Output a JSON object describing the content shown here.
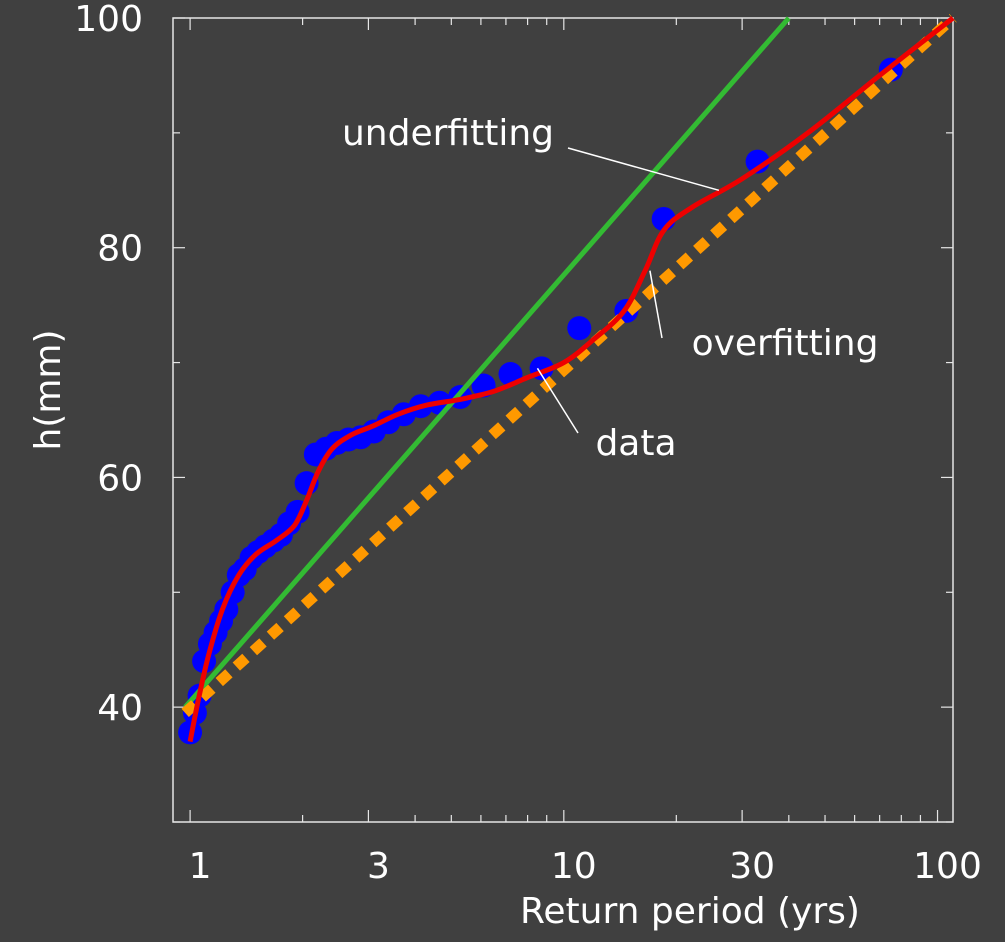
{
  "chart_data": {
    "type": "scatter",
    "title": "",
    "xlabel": "Return period (yrs)",
    "ylabel": "h(mm)",
    "x_scale": "log",
    "xlim": [
      0.9,
      110
    ],
    "ylim": [
      30,
      100
    ],
    "grid": false,
    "x_ticks": [
      {
        "value": 1,
        "label": "1"
      },
      {
        "value": 3,
        "label": "3"
      },
      {
        "value": 10,
        "label": "10"
      },
      {
        "value": 30,
        "label": "30"
      },
      {
        "value": 100,
        "label": "100"
      }
    ],
    "y_ticks": [
      {
        "value": 40,
        "label": "40"
      },
      {
        "value": 60,
        "label": "60"
      },
      {
        "value": 80,
        "label": "80"
      },
      {
        "value": 100,
        "label": "100"
      }
    ],
    "series": [
      {
        "name": "data",
        "kind": "points",
        "color": "#0000ff",
        "points": [
          [
            1.0,
            37.8
          ],
          [
            1.03,
            39.5
          ],
          [
            1.06,
            41.0
          ],
          [
            1.09,
            44.0
          ],
          [
            1.13,
            45.5
          ],
          [
            1.17,
            46.5
          ],
          [
            1.21,
            47.5
          ],
          [
            1.25,
            48.5
          ],
          [
            1.3,
            50.0
          ],
          [
            1.35,
            51.5
          ],
          [
            1.4,
            52.0
          ],
          [
            1.46,
            53.0
          ],
          [
            1.52,
            53.5
          ],
          [
            1.59,
            54.0
          ],
          [
            1.67,
            54.5
          ],
          [
            1.75,
            55.0
          ],
          [
            1.84,
            56.0
          ],
          [
            1.94,
            57.0
          ],
          [
            2.05,
            59.5
          ],
          [
            2.17,
            62.0
          ],
          [
            2.31,
            62.5
          ],
          [
            2.47,
            63.0
          ],
          [
            2.65,
            63.3
          ],
          [
            2.86,
            63.5
          ],
          [
            3.1,
            64.0
          ],
          [
            3.39,
            64.8
          ],
          [
            3.73,
            65.5
          ],
          [
            4.14,
            66.2
          ],
          [
            4.65,
            66.5
          ],
          [
            5.28,
            67.0
          ],
          [
            6.1,
            68.0
          ],
          [
            7.2,
            69.0
          ],
          [
            8.72,
            69.5
          ],
          [
            11.0,
            73.0
          ],
          [
            14.7,
            74.5
          ],
          [
            18.5,
            82.5
          ],
          [
            33.0,
            87.5
          ],
          [
            75.0,
            95.5
          ]
        ]
      },
      {
        "name": "underfitting",
        "kind": "line",
        "color": "#33bb33",
        "points": [
          [
            0.97,
            40.0
          ],
          [
            40.0,
            100.0
          ]
        ]
      },
      {
        "name": "",
        "kind": "dotted-line",
        "color": "#ff9900",
        "points": [
          [
            0.97,
            39.5
          ],
          [
            110.0,
            100.0
          ]
        ]
      },
      {
        "name": "overfitting",
        "kind": "smooth-line",
        "color": "#ee0000",
        "points": [
          [
            1.0,
            37.0
          ],
          [
            1.05,
            40.5
          ],
          [
            1.12,
            44.5
          ],
          [
            1.22,
            48.5
          ],
          [
            1.35,
            51.5
          ],
          [
            1.5,
            53.3
          ],
          [
            1.7,
            54.5
          ],
          [
            1.9,
            55.8
          ],
          [
            2.05,
            58.0
          ],
          [
            2.2,
            60.5
          ],
          [
            2.4,
            62.5
          ],
          [
            2.7,
            63.7
          ],
          [
            3.1,
            64.5
          ],
          [
            3.6,
            65.5
          ],
          [
            4.3,
            66.3
          ],
          [
            5.3,
            66.8
          ],
          [
            6.5,
            67.5
          ],
          [
            8.0,
            68.7
          ],
          [
            10.0,
            70.0
          ],
          [
            12.0,
            72.0
          ],
          [
            14.5,
            74.5
          ],
          [
            16.5,
            78.0
          ],
          [
            18.5,
            81.5
          ],
          [
            22.0,
            83.5
          ],
          [
            30.0,
            86.0
          ],
          [
            45.0,
            90.0
          ],
          [
            70.0,
            95.0
          ],
          [
            110.0,
            100.0
          ]
        ]
      }
    ],
    "annotations": [
      {
        "text": "underfitting",
        "target": "underfitting",
        "at_x": 26.0,
        "at_y": 85.0
      },
      {
        "text": "overfitting",
        "target": "overfitting",
        "at_x": 17.0,
        "at_y": 78.0
      },
      {
        "text": "data",
        "target": "data",
        "at_x": 8.5,
        "at_y": 69.5
      }
    ]
  }
}
